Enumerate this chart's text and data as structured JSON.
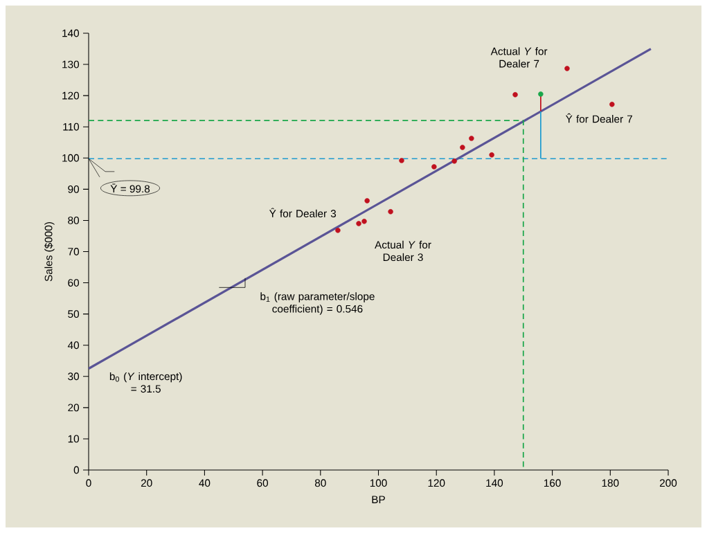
{
  "chart_data": {
    "type": "scatter",
    "xlabel": "BP",
    "ylabel": "Sales ($000)",
    "xlim": [
      0,
      200
    ],
    "ylim": [
      0,
      140
    ],
    "xticks": [
      0,
      20,
      40,
      60,
      80,
      100,
      120,
      140,
      160,
      180,
      200
    ],
    "yticks": [
      0,
      10,
      20,
      30,
      40,
      50,
      60,
      70,
      80,
      90,
      100,
      110,
      120,
      130,
      140
    ],
    "series": [
      {
        "color": "#c0111f",
        "marker": "circle",
        "x": [
          86.0,
          93.2,
          95.1,
          96.1,
          104.2,
          108.0,
          119.2,
          126.2,
          129.0,
          132.1,
          139.1,
          147.2,
          165.1,
          180.6
        ],
        "values": [
          76.8,
          79.0,
          79.7,
          86.3,
          82.8,
          99.2,
          97.2,
          99.0,
          103.4,
          106.3,
          101.0,
          120.3,
          128.7,
          117.2
        ]
      },
      {
        "type": "line",
        "color": "#5a5496",
        "line_style": "solid",
        "marker": "none",
        "x": [
          0,
          194
        ],
        "values": [
          32.5,
          135
        ]
      },
      {
        "type": "line",
        "color": "#1aa64a",
        "line_style": "dashed",
        "marker": "none",
        "x": [
          0,
          150,
          150
        ],
        "values": [
          112,
          112,
          0
        ]
      },
      {
        "type": "line",
        "color": "#1e9bd0",
        "line_style": "solid",
        "marker": "none",
        "x": [
          156,
          156
        ],
        "values": [
          99.8,
          115
        ]
      },
      {
        "type": "line",
        "color": "#c0111f",
        "line_style": "solid",
        "marker": "none",
        "x": [
          156,
          156
        ],
        "values": [
          115,
          120.5
        ]
      },
      {
        "color": "#1aa64a",
        "marker": "circle",
        "x": [
          156
        ],
        "values": [
          120.5
        ]
      },
      {
        "type": "line",
        "color": "#000000",
        "line_style": "solid",
        "marker": "none",
        "x": [
          45,
          54,
          54
        ],
        "values": [
          58.5,
          58.5,
          61.5
        ]
      }
    ],
    "ref_lines": [
      {
        "axis": "y",
        "value": 99.8,
        "label": "Ȳ = 99.8",
        "color": "#1e9bd0",
        "line_style": "dashed"
      }
    ],
    "annotations": [
      {
        "text": "Actual *Y* for Dealer 7",
        "x": 165.1,
        "y": 128.7
      },
      {
        "text": "Ŷ for Dealer 7",
        "x": 165,
        "y": 119.6
      },
      {
        "text": "Ŷ for Dealer 3",
        "x": 93,
        "y": 81.6
      },
      {
        "text": "Actual *Y* for Dealer 3",
        "x": 95.1,
        "y": 79.7
      },
      "b$_{1}$ (raw parameter/slope coefficient) = 0.546",
      {
        "text": "b$_{0}$ (*Y* intercept) = 31.5",
        "x": 0,
        "y": 32.5
      }
    ]
  }
}
